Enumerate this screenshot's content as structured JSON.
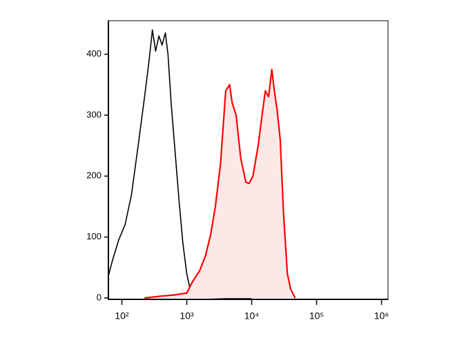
{
  "chart_data": {
    "type": "histogram-overlay",
    "xscale": "log",
    "xlim": [
      62,
      1260000
    ],
    "ylim": [
      0,
      455
    ],
    "xticks": [
      {
        "value": 100,
        "label": "10²"
      },
      {
        "value": 1000,
        "label": "10³"
      },
      {
        "value": 10000,
        "label": "10⁴"
      },
      {
        "value": 100000,
        "label": "10⁵"
      },
      {
        "value": 1000000,
        "label": "10⁶"
      }
    ],
    "yticks": [
      0,
      100,
      200,
      300,
      400
    ],
    "series": [
      {
        "color": "#000000",
        "filled": false,
        "x": [
          62,
          71,
          89,
          112,
          141,
          178,
          224,
          263,
          295,
          331,
          372,
          417,
          468,
          513,
          575,
          661,
          759,
          871,
          1000,
          1148,
          1318,
          1995,
          3981,
          10000
        ],
        "values": [
          36,
          60,
          95,
          120,
          170,
          250,
          330,
          390,
          440,
          405,
          430,
          415,
          435,
          400,
          320,
          240,
          160,
          90,
          40,
          10,
          3,
          1,
          0,
          0
        ]
      },
      {
        "color": "#ff0000",
        "fill": "#fde8e8",
        "filled": true,
        "x": [
          224,
          398,
          631,
          1000,
          1202,
          1585,
          1950,
          2344,
          2754,
          3311,
          3981,
          4571,
          5012,
          5754,
          6761,
          8128,
          9120,
          10471,
          12589,
          14454,
          16218,
          18197,
          20417,
          22387,
          24547,
          27542,
          30903,
          35481,
          39811,
          46774
        ],
        "values": [
          0,
          3,
          5,
          8,
          25,
          45,
          70,
          105,
          150,
          220,
          340,
          350,
          320,
          300,
          230,
          190,
          188,
          200,
          250,
          300,
          340,
          330,
          375,
          340,
          310,
          260,
          140,
          40,
          15,
          0
        ]
      }
    ]
  }
}
